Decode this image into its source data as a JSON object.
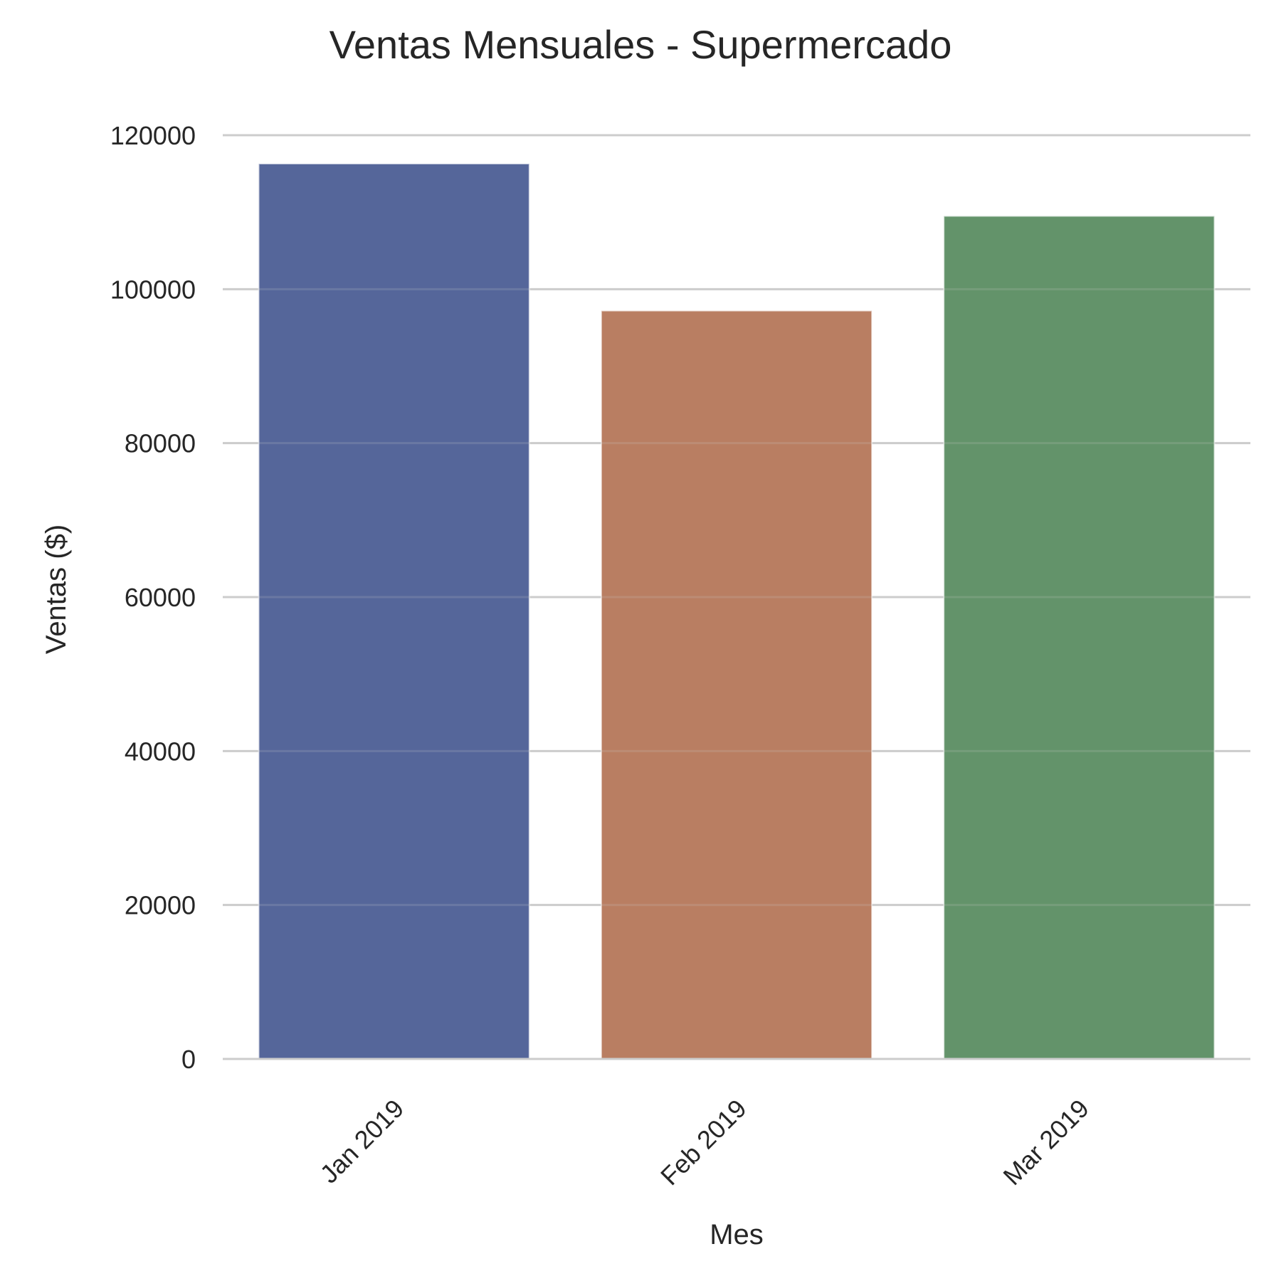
{
  "chart_data": {
    "type": "bar",
    "title": "Ventas Mensuales - Supermercado",
    "xlabel": "Mes",
    "ylabel": "Ventas ($)",
    "categories": [
      "Jan 2019",
      "Feb 2019",
      "Mar 2019"
    ],
    "values": [
      116300,
      97200,
      109500
    ],
    "yticks": [
      0,
      20000,
      40000,
      60000,
      80000,
      100000,
      120000
    ],
    "ytick_labels": [
      "0",
      "20000",
      "40000",
      "60000",
      "80000",
      "100000",
      "120000"
    ],
    "ylim": [
      0,
      120000
    ],
    "grid": "y",
    "colors": [
      "#55669a",
      "#b97e62",
      "#63936a"
    ]
  }
}
